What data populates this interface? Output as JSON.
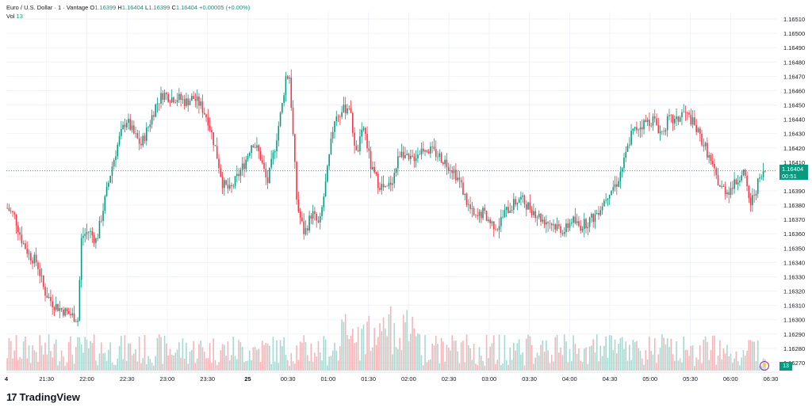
{
  "legend": {
    "title": "Euro / U.S. Dollar · 1 · Vantage",
    "o_label": "O",
    "o_value": "1.16399",
    "h_label": "H",
    "h_value": "1.16404",
    "l_label": "L",
    "l_value": "1.16399",
    "c_label": "C",
    "c_value": "1.16404",
    "change": "+0.00005 (+0.00%)",
    "vol_label": "Vol",
    "vol_value": "13"
  },
  "price_tag": {
    "price": "1.16404",
    "countdown": "00:51"
  },
  "vol_tag": "13",
  "brand": {
    "mark": "17",
    "name": "TradingView"
  },
  "colors": {
    "up": "#089981",
    "down": "#f23645",
    "vol_up": "#a7d8d0",
    "vol_down": "#f5b5b8",
    "grid": "#f0f3fa"
  },
  "chart_data": {
    "type": "candlestick",
    "symbol": "Euro / U.S. Dollar",
    "interval": "1",
    "ylim": [
      1.16265,
      1.16515
    ],
    "y_ticks": [
      "1.16510",
      "1.16500",
      "1.16490",
      "1.16480",
      "1.16470",
      "1.16460",
      "1.16450",
      "1.16440",
      "1.16430",
      "1.16420",
      "1.16410",
      "1.16400",
      "1.16390",
      "1.16380",
      "1.16370",
      "1.16360",
      "1.16350",
      "1.16340",
      "1.16330",
      "1.16320",
      "1.16310",
      "1.16300",
      "1.16290",
      "1.16280",
      "1.16270"
    ],
    "x_ticks": [
      "4",
      "21:30",
      "22:00",
      "22:30",
      "23:00",
      "23:30",
      "25",
      "00:30",
      "01:00",
      "01:30",
      "02:00",
      "02:30",
      "03:00",
      "03:30",
      "04:00",
      "04:30",
      "05:00",
      "05:30",
      "06:00",
      "06:30"
    ],
    "close_path": [
      [
        0,
        1.16378
      ],
      [
        2,
        1.16372
      ],
      [
        4,
        1.16355
      ],
      [
        6,
        1.16345
      ],
      [
        8,
        1.1634
      ],
      [
        10,
        1.1632
      ],
      [
        12,
        1.16312
      ],
      [
        14,
        1.16308
      ],
      [
        16,
        1.16305
      ],
      [
        18,
        1.16302
      ],
      [
        19,
        1.163
      ],
      [
        20,
        1.16358
      ],
      [
        22,
        1.16362
      ],
      [
        24,
        1.16355
      ],
      [
        26,
        1.1638
      ],
      [
        28,
        1.16405
      ],
      [
        30,
        1.16425
      ],
      [
        32,
        1.1644
      ],
      [
        34,
        1.1643
      ],
      [
        36,
        1.16422
      ],
      [
        38,
        1.16435
      ],
      [
        40,
        1.1645
      ],
      [
        42,
        1.16458
      ],
      [
        44,
        1.16455
      ],
      [
        46,
        1.16455
      ],
      [
        48,
        1.16452
      ],
      [
        50,
        1.16455
      ],
      [
        52,
        1.1645
      ],
      [
        54,
        1.1644
      ],
      [
        56,
        1.1642
      ],
      [
        58,
        1.16395
      ],
      [
        60,
        1.1639
      ],
      [
        62,
        1.164
      ],
      [
        64,
        1.1641
      ],
      [
        66,
        1.16425
      ],
      [
        68,
        1.16415
      ],
      [
        70,
        1.16395
      ],
      [
        72,
        1.1642
      ],
      [
        74,
        1.1645
      ],
      [
        75,
        1.1647
      ],
      [
        76,
        1.1647
      ],
      [
        78,
        1.1638
      ],
      [
        80,
        1.1636
      ],
      [
        82,
        1.16375
      ],
      [
        84,
        1.16365
      ],
      [
        86,
        1.164
      ],
      [
        88,
        1.1644
      ],
      [
        90,
        1.16445
      ],
      [
        92,
        1.1645
      ],
      [
        94,
        1.16415
      ],
      [
        96,
        1.16435
      ],
      [
        98,
        1.16405
      ],
      [
        100,
        1.16395
      ],
      [
        102,
        1.1639
      ],
      [
        104,
        1.164
      ],
      [
        106,
        1.1642
      ],
      [
        108,
        1.1641
      ],
      [
        110,
        1.16415
      ],
      [
        112,
        1.1642
      ],
      [
        114,
        1.16418
      ],
      [
        116,
        1.16415
      ],
      [
        118,
        1.1641
      ],
      [
        120,
        1.16405
      ],
      [
        122,
        1.16395
      ],
      [
        124,
        1.1638
      ],
      [
        126,
        1.1637
      ],
      [
        128,
        1.16375
      ],
      [
        130,
        1.16368
      ],
      [
        132,
        1.16365
      ],
      [
        134,
        1.16375
      ],
      [
        136,
        1.1638
      ],
      [
        138,
        1.16385
      ],
      [
        140,
        1.1638
      ],
      [
        142,
        1.16375
      ],
      [
        144,
        1.1637
      ],
      [
        146,
        1.16368
      ],
      [
        148,
        1.16365
      ],
      [
        150,
        1.16362
      ],
      [
        152,
        1.1637
      ],
      [
        154,
        1.16365
      ],
      [
        156,
        1.16368
      ],
      [
        158,
        1.16372
      ],
      [
        160,
        1.1638
      ],
      [
        162,
        1.1639
      ],
      [
        164,
        1.16395
      ],
      [
        166,
        1.1641
      ],
      [
        168,
        1.1643
      ],
      [
        170,
        1.16435
      ],
      [
        172,
        1.16438
      ],
      [
        174,
        1.1644
      ],
      [
        176,
        1.1643
      ],
      [
        178,
        1.1644
      ],
      [
        180,
        1.16438
      ],
      [
        182,
        1.16445
      ],
      [
        184,
        1.1644
      ],
      [
        186,
        1.1643
      ],
      [
        188,
        1.1642
      ],
      [
        190,
        1.16405
      ],
      [
        192,
        1.16392
      ],
      [
        194,
        1.1639
      ],
      [
        196,
        1.16395
      ],
      [
        198,
        1.16405
      ],
      [
        200,
        1.1638
      ],
      [
        202,
        1.16395
      ],
      [
        204,
        1.16404
      ]
    ],
    "volume_note": "volume bars shown in lower pane"
  }
}
